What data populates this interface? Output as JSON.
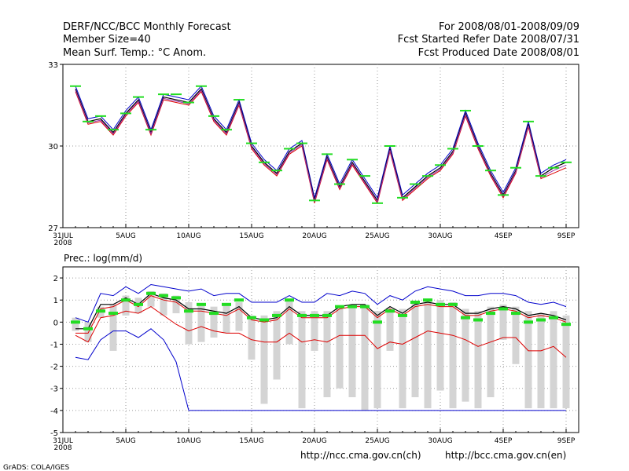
{
  "header": {
    "title": "DERF/NCC/BCC Monthly Forecast",
    "member_size": "Member Size=40",
    "variable": "Mean Surf. Temp.: °C Anom.",
    "period": "For 2008/08/01-2008/09/09",
    "fcst_started": "Fcst Started Refer Date 2008/07/31",
    "fcst_produced": "Fcst Produced Date 2008/08/01"
  },
  "footer": {
    "grads": "GrADS: COLA/IGES",
    "url_ncc": "http://ncc.cma.gov.cn(ch)",
    "url_bcc": "http://bcc.cma.gov.cn(en)"
  },
  "colors": {
    "grid": "#9a9a9a",
    "observed": "#22dd22",
    "mean": "#000000",
    "blue": "#0000cc",
    "red": "#dd0000",
    "purple": "#9933aa",
    "bar": "#d4d4d4"
  },
  "chart_data": [
    {
      "type": "line",
      "name": "temperature",
      "title": "Mean Surf. Temp.: °C Anom.",
      "ylim": [
        27,
        33
      ],
      "yticks": [
        "27",
        "30",
        "33"
      ],
      "xticks": [
        {
          "day": 0,
          "label": "31JUL",
          "label2": "2008"
        },
        {
          "day": 5,
          "label": "5AUG"
        },
        {
          "day": 10,
          "label": "10AUG"
        },
        {
          "day": 15,
          "label": "15AUG"
        },
        {
          "day": 20,
          "label": "20AUG"
        },
        {
          "day": 25,
          "label": "25AUG"
        },
        {
          "day": 30,
          "label": "30AUG"
        },
        {
          "day": 35,
          "label": "4SEP"
        },
        {
          "day": 40,
          "label": "9SEP"
        }
      ],
      "x": [
        1,
        2,
        3,
        4,
        5,
        6,
        7,
        8,
        9,
        10,
        11,
        12,
        13,
        14,
        15,
        16,
        17,
        18,
        19,
        20,
        21,
        22,
        23,
        24,
        25,
        26,
        27,
        28,
        29,
        30,
        31,
        32,
        33,
        34,
        35,
        36,
        37,
        38,
        39,
        40
      ],
      "series": [
        {
          "name": "upper",
          "color_key": "blue",
          "values": [
            32.2,
            31.0,
            31.1,
            30.6,
            31.3,
            31.8,
            30.6,
            31.9,
            31.8,
            31.7,
            32.2,
            31.1,
            30.6,
            31.7,
            30.1,
            29.5,
            29.1,
            29.9,
            30.2,
            28.1,
            29.7,
            28.6,
            29.5,
            28.8,
            28.1,
            30.0,
            28.2,
            28.6,
            29.0,
            29.3,
            29.9,
            31.3,
            30.1,
            29.1,
            28.3,
            29.2,
            30.9,
            29.0,
            29.3,
            29.5
          ]
        },
        {
          "name": "mean",
          "color_key": "mean",
          "values": [
            32.1,
            30.9,
            31.0,
            30.5,
            31.2,
            31.7,
            30.5,
            31.8,
            31.7,
            31.6,
            32.1,
            31.0,
            30.5,
            31.6,
            30.0,
            29.4,
            29.0,
            29.8,
            30.1,
            28.0,
            29.6,
            28.5,
            29.4,
            28.7,
            28.0,
            29.9,
            28.1,
            28.5,
            28.9,
            29.2,
            29.8,
            31.2,
            30.0,
            29.0,
            28.2,
            29.1,
            30.8,
            28.9,
            29.2,
            29.4
          ]
        },
        {
          "name": "lower",
          "color_key": "red",
          "values": [
            32.0,
            30.8,
            30.9,
            30.4,
            31.1,
            31.6,
            30.4,
            31.7,
            31.6,
            31.5,
            32.0,
            30.9,
            30.4,
            31.5,
            29.9,
            29.3,
            28.9,
            29.7,
            30.0,
            27.9,
            29.5,
            28.4,
            29.3,
            28.6,
            27.9,
            29.8,
            28.0,
            28.4,
            28.8,
            29.1,
            29.7,
            31.1,
            29.9,
            28.9,
            28.1,
            29.0,
            30.7,
            28.8,
            29.0,
            29.2
          ]
        },
        {
          "name": "purple",
          "color_key": "purple",
          "values": [
            32.05,
            30.85,
            30.95,
            30.45,
            31.15,
            31.65,
            30.45,
            31.75,
            31.65,
            31.55,
            32.05,
            30.95,
            30.45,
            31.55,
            29.95,
            29.35,
            28.95,
            29.75,
            30.05,
            27.95,
            29.55,
            28.45,
            29.35,
            28.65,
            27.95,
            29.85,
            28.05,
            28.45,
            28.85,
            29.15,
            29.75,
            31.15,
            29.95,
            28.95,
            28.15,
            29.05,
            30.75,
            28.85,
            29.1,
            29.3
          ]
        }
      ],
      "observed": [
        32.2,
        30.9,
        31.1,
        30.6,
        31.2,
        31.8,
        30.6,
        31.9,
        31.9,
        31.6,
        32.2,
        31.1,
        30.6,
        31.7,
        30.1,
        29.4,
        29.1,
        29.9,
        30.1,
        28.0,
        29.7,
        28.6,
        29.5,
        28.9,
        27.9,
        30.0,
        28.1,
        28.6,
        28.9,
        29.3,
        29.9,
        31.3,
        30.0,
        29.1,
        28.2,
        29.2,
        30.9,
        28.9,
        29.2,
        29.4
      ]
    },
    {
      "type": "line",
      "name": "precipitation",
      "title": "Prec.: log(mm/d)",
      "ylim": [
        -5,
        2.5
      ],
      "yticks": [
        "2",
        "1",
        "0",
        "-1",
        "-2",
        "-3",
        "-4",
        "-5"
      ],
      "xticks": [
        {
          "day": 0,
          "label": "31JUL",
          "label2": "2008"
        },
        {
          "day": 5,
          "label": "5AUG"
        },
        {
          "day": 10,
          "label": "10AUG"
        },
        {
          "day": 15,
          "label": "15AUG"
        },
        {
          "day": 20,
          "label": "20AUG"
        },
        {
          "day": 25,
          "label": "25AUG"
        },
        {
          "day": 30,
          "label": "30AUG"
        },
        {
          "day": 35,
          "label": "4SEP"
        },
        {
          "day": 40,
          "label": "9SEP"
        }
      ],
      "x": [
        1,
        2,
        3,
        4,
        5,
        6,
        7,
        8,
        9,
        10,
        11,
        12,
        13,
        14,
        15,
        16,
        17,
        18,
        19,
        20,
        21,
        22,
        23,
        24,
        25,
        26,
        27,
        28,
        29,
        30,
        31,
        32,
        33,
        34,
        35,
        36,
        37,
        38,
        39,
        40
      ],
      "spread_bars": [
        {
          "top": 0.2,
          "bottom": -0.4
        },
        {
          "top": 0.0,
          "bottom": -0.9
        },
        {
          "top": 0.7,
          "bottom": 0.2
        },
        {
          "top": 0.8,
          "bottom": -1.3
        },
        {
          "top": 1.2,
          "bottom": 0.3
        },
        {
          "top": 1.1,
          "bottom": 0.4
        },
        {
          "top": 1.4,
          "bottom": 0.7
        },
        {
          "top": 1.3,
          "bottom": 0.3
        },
        {
          "top": 1.2,
          "bottom": 0.4
        },
        {
          "top": 0.9,
          "bottom": -1.0
        },
        {
          "top": 0.8,
          "bottom": -0.9
        },
        {
          "top": 0.7,
          "bottom": -0.7
        },
        {
          "top": 0.8,
          "bottom": -0.5
        },
        {
          "top": 0.9,
          "bottom": -0.4
        },
        {
          "top": 0.3,
          "bottom": -1.7
        },
        {
          "top": 0.3,
          "bottom": -3.7
        },
        {
          "top": 0.5,
          "bottom": -2.6
        },
        {
          "top": 1.0,
          "bottom": -1.0
        },
        {
          "top": 0.5,
          "bottom": -3.9
        },
        {
          "top": 0.5,
          "bottom": -1.3
        },
        {
          "top": 0.5,
          "bottom": -3.4
        },
        {
          "top": 0.7,
          "bottom": -3.0
        },
        {
          "top": 0.7,
          "bottom": -3.4
        },
        {
          "top": 0.8,
          "bottom": -4.0
        },
        {
          "top": 0.5,
          "bottom": -3.9
        },
        {
          "top": 0.6,
          "bottom": -1.3
        },
        {
          "top": 0.6,
          "bottom": -3.9
        },
        {
          "top": 0.9,
          "bottom": -3.4
        },
        {
          "top": 1.0,
          "bottom": -3.9
        },
        {
          "top": 1.0,
          "bottom": -3.1
        },
        {
          "top": 0.9,
          "bottom": -3.9
        },
        {
          "top": 0.6,
          "bottom": -3.6
        },
        {
          "top": 0.5,
          "bottom": -3.9
        },
        {
          "top": 0.7,
          "bottom": -3.4
        },
        {
          "top": 0.8,
          "bottom": -0.8
        },
        {
          "top": 0.7,
          "bottom": -1.9
        },
        {
          "top": 0.5,
          "bottom": -3.9
        },
        {
          "top": 0.4,
          "bottom": -3.9
        },
        {
          "top": 0.5,
          "bottom": -3.9
        },
        {
          "top": 0.3,
          "bottom": -3.9
        }
      ],
      "series": [
        {
          "name": "upper-envelope",
          "color_key": "blue",
          "values": [
            0.2,
            0.0,
            1.3,
            1.2,
            1.6,
            1.3,
            1.7,
            1.6,
            1.5,
            1.4,
            1.5,
            1.2,
            1.3,
            1.3,
            0.9,
            0.9,
            0.9,
            1.2,
            0.9,
            0.9,
            1.3,
            1.2,
            1.4,
            1.3,
            0.8,
            1.2,
            1.0,
            1.4,
            1.6,
            1.5,
            1.4,
            1.2,
            1.2,
            1.3,
            1.3,
            1.2,
            0.9,
            0.8,
            0.9,
            0.7
          ]
        },
        {
          "name": "lower-envelope",
          "color_key": "blue",
          "values": [
            -1.6,
            -1.7,
            -0.8,
            -0.4,
            -0.4,
            -0.7,
            -0.3,
            -0.8,
            -1.8,
            -4.0,
            -4.0,
            -4.0,
            -4.0,
            -4.0,
            -4.0,
            -4.0,
            -4.0,
            -4.0,
            -4.0,
            -4.0,
            -4.0,
            -4.0,
            -4.0,
            -4.0,
            -4.0,
            -4.0,
            -4.0,
            -4.0,
            -4.0,
            -4.0,
            -4.0,
            -4.0,
            -4.0,
            -4.0,
            -4.0,
            -4.0,
            -4.0,
            -4.0,
            -4.0,
            -4.0
          ]
        },
        {
          "name": "mean",
          "color_key": "mean",
          "values": [
            -0.3,
            -0.3,
            0.8,
            0.8,
            1.1,
            0.8,
            1.3,
            1.1,
            1.0,
            0.6,
            0.6,
            0.5,
            0.4,
            0.7,
            0.2,
            0.1,
            0.2,
            0.7,
            0.3,
            0.3,
            0.3,
            0.7,
            0.8,
            0.8,
            0.3,
            0.7,
            0.4,
            0.8,
            0.9,
            0.8,
            0.8,
            0.4,
            0.4,
            0.6,
            0.7,
            0.6,
            0.3,
            0.4,
            0.3,
            0.1
          ]
        },
        {
          "name": "median",
          "color_key": "red",
          "values": [
            -0.5,
            -0.5,
            0.6,
            0.7,
            1.0,
            0.7,
            1.2,
            1.0,
            0.9,
            0.5,
            0.5,
            0.4,
            0.3,
            0.6,
            0.1,
            0.0,
            0.1,
            0.6,
            0.2,
            0.2,
            0.2,
            0.6,
            0.7,
            0.7,
            0.2,
            0.6,
            0.3,
            0.7,
            0.8,
            0.7,
            0.7,
            0.3,
            0.3,
            0.5,
            0.6,
            0.5,
            0.2,
            0.3,
            0.2,
            0.0
          ]
        },
        {
          "name": "lower-percentile",
          "color_key": "red",
          "values": [
            -0.6,
            -0.9,
            0.2,
            0.3,
            0.5,
            0.4,
            0.7,
            0.3,
            -0.1,
            -0.4,
            -0.2,
            -0.4,
            -0.5,
            -0.5,
            -0.8,
            -0.9,
            -0.9,
            -0.5,
            -0.9,
            -0.8,
            -0.9,
            -0.6,
            -0.6,
            -0.6,
            -1.2,
            -0.9,
            -1.0,
            -0.7,
            -0.4,
            -0.5,
            -0.6,
            -0.8,
            -1.1,
            -0.9,
            -0.7,
            -0.7,
            -1.3,
            -1.3,
            -1.1,
            -1.6
          ]
        }
      ],
      "observed": [
        0.0,
        -0.3,
        0.5,
        0.4,
        1.0,
        0.8,
        1.3,
        1.2,
        1.1,
        0.5,
        0.8,
        0.4,
        0.8,
        1.0,
        0.2,
        0.1,
        0.3,
        1.0,
        0.3,
        0.3,
        0.3,
        0.7,
        0.7,
        0.7,
        0.0,
        0.5,
        0.3,
        0.9,
        1.0,
        0.8,
        0.8,
        0.2,
        0.1,
        0.4,
        0.6,
        0.4,
        0.0,
        0.1,
        0.2,
        -0.1
      ]
    }
  ]
}
